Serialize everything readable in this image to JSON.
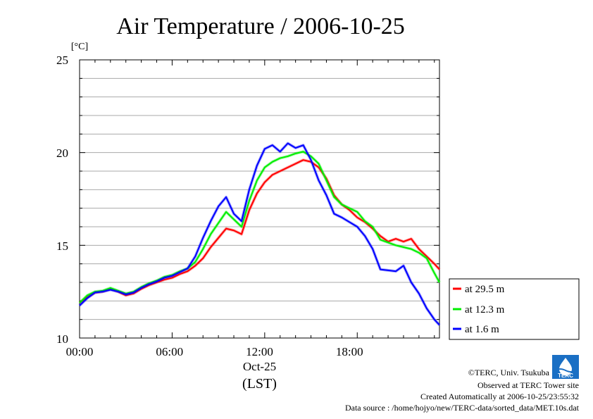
{
  "chart_data": {
    "type": "line",
    "title": "Air Temperature / 2006-10-25",
    "unit_label": "[°C]",
    "y_ticks": [
      "10",
      "15",
      "20",
      "25"
    ],
    "ylim": [
      10,
      25
    ],
    "x_ticks": [
      "00:00",
      "06:00",
      "12:00",
      "18:00"
    ],
    "x_tick_hours": [
      0,
      6,
      12,
      18
    ],
    "xlim": [
      0,
      23.33
    ],
    "x_date_label": "Oct-25",
    "x_zone_label": "(LST)",
    "grid": "horizontal every 1 °C",
    "legend_placement": "right",
    "x": [
      0,
      0.5,
      1,
      1.5,
      2,
      2.5,
      3,
      3.5,
      4,
      4.5,
      5,
      5.5,
      6,
      6.5,
      7,
      7.5,
      8,
      8.5,
      9,
      9.5,
      10,
      10.5,
      11,
      11.5,
      12,
      12.5,
      13,
      13.5,
      14,
      14.5,
      15,
      15.5,
      16,
      16.5,
      17,
      17.5,
      18,
      18.5,
      19,
      19.5,
      20,
      20.5,
      21,
      21.5,
      22,
      22.5,
      23,
      23.33
    ],
    "series": [
      {
        "name": "at 29.5 m",
        "color": "#ff0000",
        "values": [
          11.9,
          12.2,
          12.45,
          12.5,
          12.65,
          12.5,
          12.3,
          12.4,
          12.65,
          12.85,
          13.0,
          13.15,
          13.25,
          13.45,
          13.6,
          13.9,
          14.3,
          14.9,
          15.4,
          15.9,
          15.8,
          15.6,
          16.9,
          17.8,
          18.4,
          18.8,
          19.0,
          19.2,
          19.4,
          19.6,
          19.5,
          19.2,
          18.6,
          17.7,
          17.2,
          16.9,
          16.5,
          16.25,
          15.9,
          15.5,
          15.2,
          15.35,
          15.2,
          15.35,
          14.8,
          14.4,
          14.0,
          13.7
        ]
      },
      {
        "name": "at 12.3 m",
        "color": "#00ee00",
        "values": [
          11.9,
          12.3,
          12.5,
          12.55,
          12.7,
          12.55,
          12.4,
          12.5,
          12.75,
          12.95,
          13.1,
          13.3,
          13.4,
          13.6,
          13.75,
          14.1,
          14.8,
          15.6,
          16.2,
          16.8,
          16.4,
          16.0,
          17.4,
          18.5,
          19.2,
          19.5,
          19.7,
          19.8,
          19.95,
          20.05,
          19.8,
          19.4,
          18.5,
          17.6,
          17.2,
          17.0,
          16.8,
          16.3,
          16.0,
          15.3,
          15.15,
          15.0,
          14.9,
          14.8,
          14.6,
          14.3,
          13.5,
          13.0
        ]
      },
      {
        "name": "at 1.6 m",
        "color": "#0000ff",
        "values": [
          11.75,
          12.15,
          12.45,
          12.5,
          12.6,
          12.5,
          12.35,
          12.45,
          12.7,
          12.9,
          13.05,
          13.25,
          13.35,
          13.55,
          13.75,
          14.4,
          15.4,
          16.3,
          17.1,
          17.6,
          16.7,
          16.3,
          18.0,
          19.3,
          20.2,
          20.4,
          20.05,
          20.5,
          20.25,
          20.4,
          19.6,
          18.5,
          17.7,
          16.7,
          16.5,
          16.25,
          16.0,
          15.5,
          14.8,
          13.7,
          13.65,
          13.6,
          13.9,
          13.0,
          12.4,
          11.6,
          11.0,
          10.7
        ]
      }
    ]
  },
  "legend": {
    "items": [
      "at 29.5 m",
      "at 12.3 m",
      "at 1.6 m"
    ]
  },
  "footer": {
    "copyright": "©TERC, Univ. Tsukuba",
    "observed": "Observed at TERC Tower site",
    "created": "Created Automatically at 2006-10-25/23:55:32",
    "source": "Data source : /home/hojyo/new/TERC-data/sorted_data/MET.10s.dat",
    "logo_text": "TERC"
  }
}
